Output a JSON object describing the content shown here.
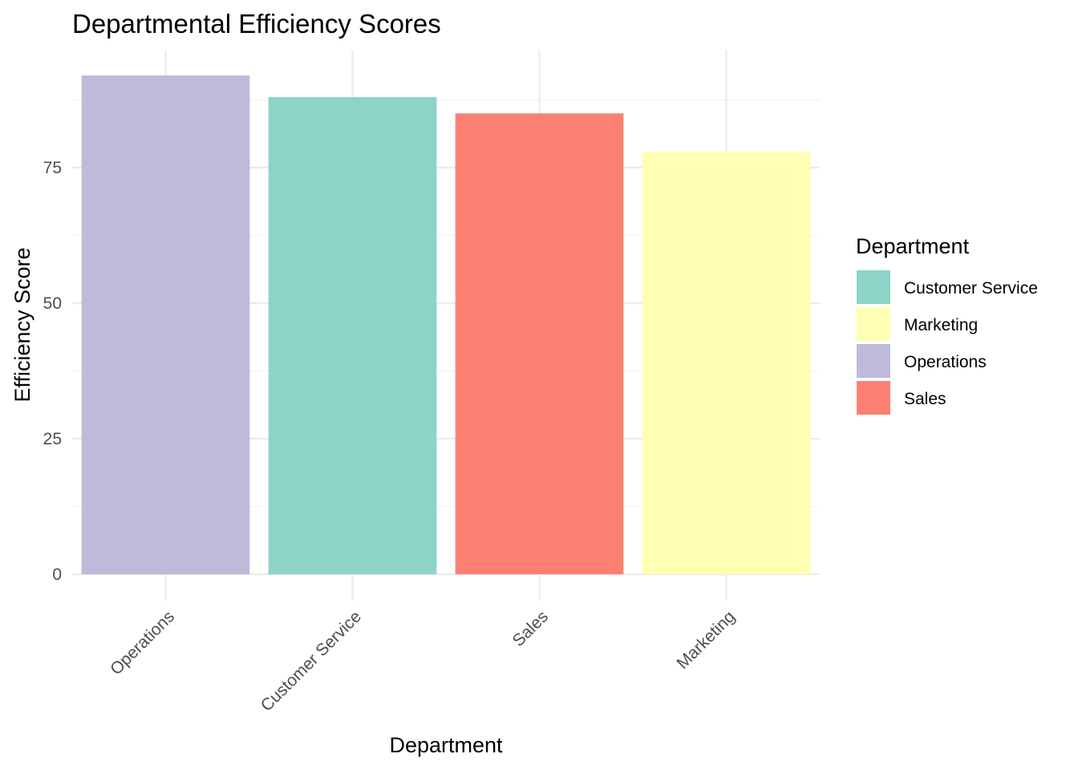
{
  "chart_data": {
    "type": "bar",
    "title": "Departmental Efficiency Scores",
    "xlabel": "Department",
    "ylabel": "Efficiency Score",
    "categories": [
      "Operations",
      "Customer Service",
      "Sales",
      "Marketing"
    ],
    "values": [
      92,
      88,
      85,
      78
    ],
    "bar_colors": [
      "#BEBADA",
      "#8DD3C7",
      "#FB8072",
      "#FFFFB3"
    ],
    "ylim": [
      0,
      96.6
    ],
    "y_ticks": [
      0,
      25,
      50,
      75
    ],
    "grid": true,
    "x_tick_rotation_deg": 45,
    "legend": {
      "title": "Department",
      "position": "right",
      "entries": [
        {
          "label": "Customer Service",
          "color": "#8DD3C7"
        },
        {
          "label": "Marketing",
          "color": "#FFFFB3"
        },
        {
          "label": "Operations",
          "color": "#BEBADA"
        },
        {
          "label": "Sales",
          "color": "#FB8072"
        }
      ]
    }
  }
}
